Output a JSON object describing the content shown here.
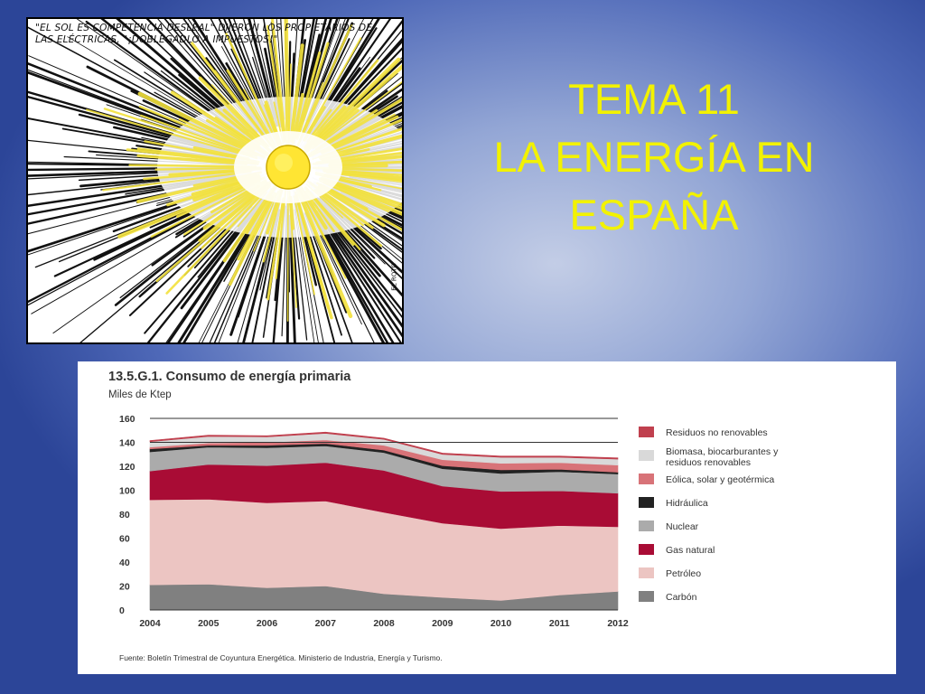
{
  "slide": {
    "title_lines": [
      "TEMA 11",
      "LA ENERGÍA EN",
      "ESPAÑA"
    ],
    "title_color": "#f2f200"
  },
  "cartoon": {
    "caption_lines": [
      "\"EL SOL ES COMPETENCIA DESLEAL\" DIJERON LOS PROPIETARIOS DE",
      "LAS ELÉCTRICAS, \"¡DOBLEGADLO A IMPUESTOS!\""
    ],
    "signature": "EL ROTO"
  },
  "chart_data": {
    "type": "area",
    "stacked": true,
    "title": "13.5.G.1. Consumo de energía primaria",
    "subtitle": "Miles de Ktep",
    "source": "Fuente: Boletín Trimestral de Coyuntura Energética. Ministerio de Industria, Energía y Turismo.",
    "x": [
      "2004",
      "2005",
      "2006",
      "2007",
      "2008",
      "2009",
      "2010",
      "2011",
      "2012"
    ],
    "ylim": [
      0,
      160
    ],
    "yticks": [
      0,
      20,
      40,
      60,
      80,
      100,
      120,
      140,
      160
    ],
    "gridlines": [
      140,
      160
    ],
    "legend_position": "right",
    "series": [
      {
        "name": "Carbón",
        "color": "#808080",
        "values": [
          21,
          21.5,
          18.5,
          20,
          13.5,
          10.5,
          8,
          12.5,
          15.5
        ]
      },
      {
        "name": "Petróleo",
        "color": "#ecc5c2",
        "values": [
          71,
          71,
          71,
          71,
          68,
          62,
          60,
          58,
          54
        ]
      },
      {
        "name": "Gas natural",
        "color": "#a90c35",
        "values": [
          24,
          29,
          31,
          32,
          35,
          31,
          31,
          29,
          28
        ]
      },
      {
        "name": "Nuclear",
        "color": "#ababab",
        "values": [
          16,
          14.5,
          15,
          14,
          15,
          14.5,
          15,
          16,
          16
        ]
      },
      {
        "name": "Hidráulica",
        "color": "#222222",
        "values": [
          2.5,
          1.5,
          2,
          2,
          2,
          2.5,
          3,
          2,
          1.5
        ]
      },
      {
        "name": "Eólica, solar y geotérmica",
        "color": "#d87378",
        "values": [
          1.5,
          2,
          2.5,
          3,
          4,
          5,
          5.5,
          5.5,
          6
        ]
      },
      {
        "name": "Biomasa, biocarburantes y residuos renovables",
        "color": "#d9d9d9",
        "values": [
          4.5,
          5.5,
          4.5,
          5.5,
          5,
          4.5,
          5,
          4.5,
          5
        ]
      },
      {
        "name": "Residuos no renovables",
        "color": "#c0404e",
        "values": [
          1,
          1,
          1,
          1,
          1,
          1,
          1,
          1,
          1
        ]
      }
    ]
  }
}
